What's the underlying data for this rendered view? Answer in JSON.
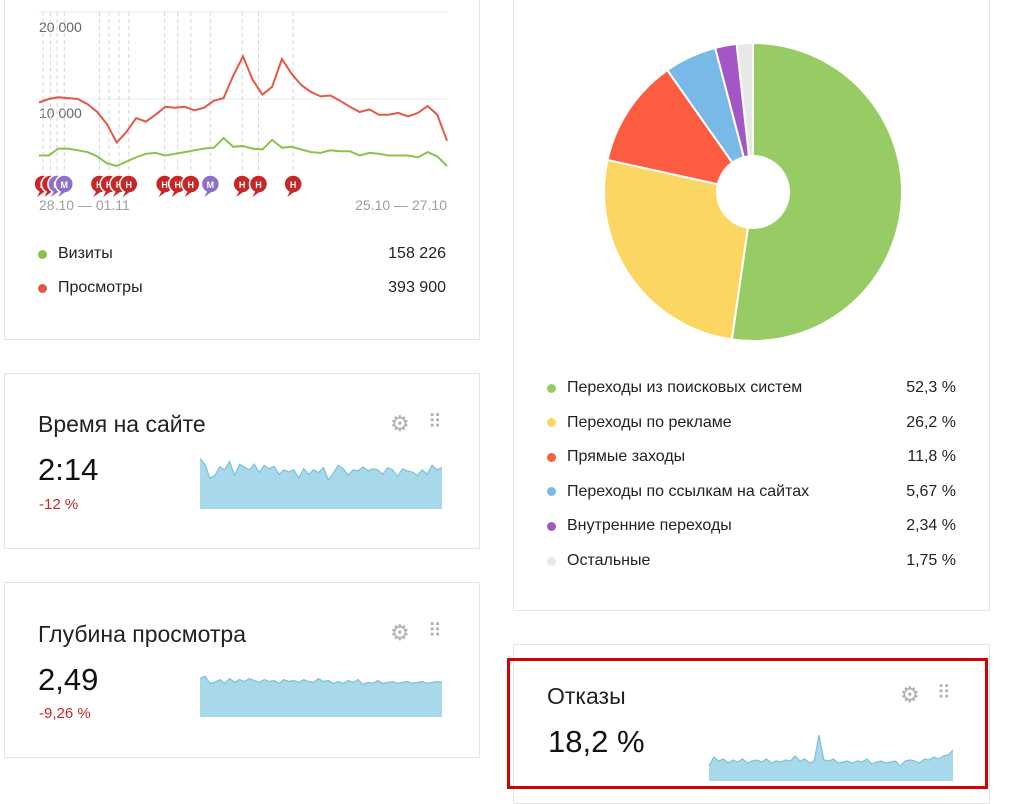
{
  "traffic": {
    "y_ticks": [
      "20 000",
      "10 000"
    ],
    "date_left": "28.10 — 01.11",
    "date_right": "25.10 — 27.10",
    "colors": {
      "visits": "#8bc34a",
      "views": "#e25a45",
      "grid": "#e8e8e8"
    },
    "chart_data": {
      "type": "line",
      "ylim": [
        0,
        22000
      ],
      "series": [
        {
          "name": "Визиты",
          "values": [
            3500,
            3500,
            4300,
            4300,
            4100,
            3900,
            3400,
            2600,
            2300,
            2800,
            3300,
            3700,
            3800,
            3500,
            3700,
            3900,
            4100,
            4300,
            4400,
            5500,
            4500,
            4600,
            4300,
            4200,
            5300,
            4400,
            4500,
            4200,
            3900,
            3800,
            4100,
            4000,
            4000,
            3500,
            3800,
            3700,
            3500,
            3500,
            3500,
            3300,
            3900,
            3400,
            2300
          ]
        },
        {
          "name": "Просмотры",
          "values": [
            9600,
            10000,
            10200,
            10100,
            10000,
            9400,
            8500,
            7100,
            5000,
            6200,
            7800,
            7400,
            8200,
            9100,
            9000,
            9100,
            8700,
            9000,
            9800,
            10100,
            12700,
            14900,
            12200,
            10500,
            11400,
            14600,
            12900,
            11600,
            10800,
            10300,
            10400,
            9800,
            9100,
            8500,
            8800,
            8200,
            8200,
            8400,
            8000,
            8400,
            9200,
            8200,
            5200
          ]
        }
      ]
    },
    "annotations": [
      {
        "x": 0.01,
        "label": "H",
        "type": "red"
      },
      {
        "x": 0.028,
        "label": "H",
        "type": "red"
      },
      {
        "x": 0.044,
        "label": "M",
        "type": "purple"
      },
      {
        "x": 0.062,
        "label": "M",
        "type": "purple"
      },
      {
        "x": 0.148,
        "label": "H",
        "type": "red"
      },
      {
        "x": 0.172,
        "label": "H",
        "type": "red"
      },
      {
        "x": 0.196,
        "label": "H",
        "type": "red"
      },
      {
        "x": 0.22,
        "label": "H",
        "type": "red"
      },
      {
        "x": 0.308,
        "label": "H",
        "type": "red"
      },
      {
        "x": 0.34,
        "label": "H",
        "type": "red"
      },
      {
        "x": 0.372,
        "label": "H",
        "type": "red"
      },
      {
        "x": 0.42,
        "label": "M",
        "type": "purple"
      },
      {
        "x": 0.498,
        "label": "H",
        "type": "red"
      },
      {
        "x": 0.538,
        "label": "H",
        "type": "red"
      },
      {
        "x": 0.623,
        "label": "H",
        "type": "red"
      }
    ],
    "legend": [
      {
        "label": "Визиты",
        "value": "158 226",
        "color": "#8bc34a"
      },
      {
        "label": "Просмотры",
        "value": "393 900",
        "color": "#e25a45"
      }
    ]
  },
  "sources": {
    "chart_data": {
      "type": "pie",
      "categories": [
        "Переходы из поисковых систем",
        "Переходы по рекламе",
        "Прямые заходы",
        "Переходы по ссылкам на сайтах",
        "Внутренние переходы",
        "Остальные"
      ],
      "values": [
        52.3,
        26.2,
        11.8,
        5.67,
        2.34,
        1.75
      ],
      "colors": [
        "#97cc64",
        "#fcd662",
        "#fd5c40",
        "#78b9e8",
        "#a456c6",
        "#e8e8e8"
      ]
    },
    "items": [
      {
        "label": "Переходы из поисковых систем",
        "value": "52,3 %",
        "color": "#97cc64"
      },
      {
        "label": "Переходы по рекламе",
        "value": "26,2 %",
        "color": "#fcd662"
      },
      {
        "label": "Прямые заходы",
        "value": "11,8 %",
        "color": "#fd5c40"
      },
      {
        "label": "Переходы по ссылкам на сайтах",
        "value": "5,67 %",
        "color": "#78b9e8"
      },
      {
        "label": "Внутренние переходы",
        "value": "2,34 %",
        "color": "#a456c6"
      },
      {
        "label": "Остальные",
        "value": "1,75 %",
        "color": "#e8e8e8"
      }
    ]
  },
  "widgets": {
    "time": {
      "title": "Время на сайте",
      "value": "2:14",
      "delta": "-12 %",
      "spark": [
        0.9,
        0.8,
        0.55,
        0.6,
        0.75,
        0.7,
        0.85,
        0.6,
        0.8,
        0.75,
        0.7,
        0.8,
        0.65,
        0.78,
        0.72,
        0.76,
        0.62,
        0.7,
        0.66,
        0.7,
        0.55,
        0.72,
        0.62,
        0.7,
        0.65,
        0.74,
        0.52,
        0.64,
        0.78,
        0.72,
        0.6,
        0.7,
        0.68,
        0.75,
        0.68,
        0.72,
        0.7,
        0.62,
        0.74,
        0.7,
        0.58,
        0.72,
        0.68,
        0.66,
        0.6,
        0.7,
        0.62,
        0.78,
        0.7,
        0.74
      ]
    },
    "depth": {
      "title": "Глубина просмотра",
      "value": "2,49",
      "delta": "-9,26 %",
      "spark": [
        0.8,
        0.85,
        0.7,
        0.72,
        0.78,
        0.7,
        0.8,
        0.72,
        0.78,
        0.74,
        0.8,
        0.76,
        0.72,
        0.78,
        0.74,
        0.76,
        0.7,
        0.78,
        0.74,
        0.76,
        0.72,
        0.78,
        0.74,
        0.72,
        0.8,
        0.74,
        0.76,
        0.7,
        0.74,
        0.7,
        0.76,
        0.72,
        0.78,
        0.68,
        0.72,
        0.7,
        0.76,
        0.7,
        0.72,
        0.74,
        0.7,
        0.72,
        0.74,
        0.7,
        0.72,
        0.74,
        0.7,
        0.72,
        0.74,
        0.72
      ]
    },
    "bounce": {
      "title": "Отказы",
      "value": "18,2 %",
      "delta": "",
      "spark": [
        0.3,
        0.48,
        0.4,
        0.44,
        0.36,
        0.42,
        0.38,
        0.44,
        0.36,
        0.4,
        0.42,
        0.38,
        0.44,
        0.36,
        0.4,
        0.38,
        0.42,
        0.4,
        0.5,
        0.4,
        0.44,
        0.36,
        0.4,
        0.92,
        0.42,
        0.4,
        0.44,
        0.36,
        0.38,
        0.4,
        0.36,
        0.4,
        0.38,
        0.44,
        0.34,
        0.38,
        0.4,
        0.36,
        0.38,
        0.4,
        0.3,
        0.4,
        0.42,
        0.4,
        0.36,
        0.44,
        0.42,
        0.48,
        0.44,
        0.5,
        0.52,
        0.62
      ]
    }
  },
  "icons": {
    "settings": "gear-icon",
    "drag": "drag-handle-icon"
  },
  "colors": {
    "spark_fill": "#a8d9ea",
    "spark_line": "#7cc0dc",
    "delta": "#c62828",
    "highlight": "#d50000"
  }
}
